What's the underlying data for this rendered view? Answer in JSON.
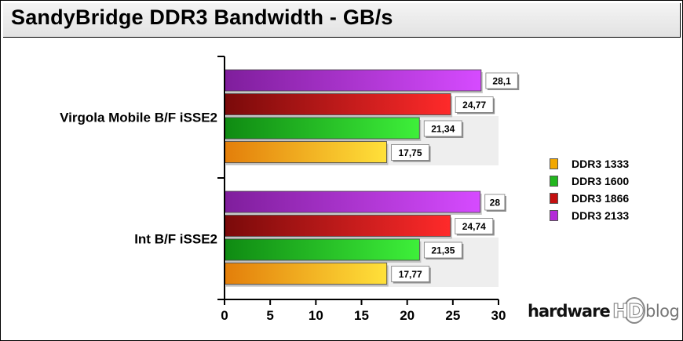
{
  "chart_data": {
    "type": "bar",
    "orientation": "horizontal",
    "title": "SandyBridge DDR3 Bandwidth - GB/s",
    "categories": [
      "Virgola Mobile B/F iSSE2",
      "Int B/F iSSE2"
    ],
    "series": [
      {
        "name": "DDR3 2133",
        "values": [
          28.1,
          28
        ],
        "labels": [
          "28,1",
          "28"
        ]
      },
      {
        "name": "DDR3 1866",
        "values": [
          24.77,
          24.74
        ],
        "labels": [
          "24,77",
          "24,74"
        ]
      },
      {
        "name": "DDR3 1600",
        "values": [
          21.34,
          21.35
        ],
        "labels": [
          "21,34",
          "21,35"
        ]
      },
      {
        "name": "DDR3 1333",
        "values": [
          17.75,
          17.77
        ],
        "labels": [
          "17,75",
          "17,77"
        ]
      }
    ],
    "xlim": [
      0,
      30
    ],
    "xticks": [
      0,
      5,
      10,
      15,
      20,
      25,
      30
    ],
    "legend_position": "right",
    "grid": false
  },
  "legend": [
    {
      "label": "DDR3 1333",
      "color": "#f2a800"
    },
    {
      "label": "DDR3 1600",
      "color": "#22b61e"
    },
    {
      "label": "DDR3 1866",
      "color": "#c41010"
    },
    {
      "label": "DDR3 2133",
      "color": "#b42bd8"
    }
  ],
  "series_colors": {
    "DDR3 2133": {
      "dark": "#7f1e9c",
      "light": "#d64bff"
    },
    "DDR3 1866": {
      "dark": "#7a0a0a",
      "light": "#ff2a2a"
    },
    "DDR3 1600": {
      "dark": "#0f8a12",
      "light": "#3ef03a"
    },
    "DDR3 1333": {
      "dark": "#e37e0a",
      "light": "#ffe13a"
    }
  },
  "logo": {
    "part1": "hardware",
    "part2": "HD",
    "part3": "blog"
  }
}
